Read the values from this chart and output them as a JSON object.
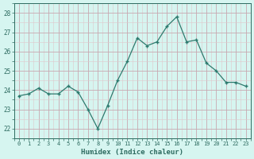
{
  "x": [
    0,
    1,
    2,
    3,
    4,
    5,
    6,
    7,
    8,
    9,
    10,
    11,
    12,
    13,
    14,
    15,
    16,
    17,
    18,
    19,
    20,
    21,
    22,
    23
  ],
  "y": [
    23.7,
    23.8,
    24.1,
    23.8,
    23.8,
    24.2,
    23.9,
    23.0,
    22.0,
    23.2,
    24.5,
    25.5,
    26.7,
    26.3,
    26.5,
    27.3,
    27.8,
    26.5,
    26.6,
    25.4,
    25.0,
    24.4,
    24.4,
    24.2
  ],
  "line_color": "#2d7a6e",
  "marker_color": "#2d7a6e",
  "bg_color": "#d6f5f0",
  "xlabel": "Humidex (Indice chaleur)",
  "ylim": [
    21.5,
    28.5
  ],
  "yticks": [
    22,
    23,
    24,
    25,
    26,
    27,
    28
  ],
  "xticks": [
    0,
    1,
    2,
    3,
    4,
    5,
    6,
    7,
    8,
    9,
    10,
    11,
    12,
    13,
    14,
    15,
    16,
    17,
    18,
    19,
    20,
    21,
    22,
    23
  ],
  "tick_color": "#2d6b60",
  "xlabel_color": "#2d6b60",
  "grid_major_color": "#c8a8b0",
  "grid_minor_color": "#dfc8cc",
  "spine_color": "#2d6b60"
}
